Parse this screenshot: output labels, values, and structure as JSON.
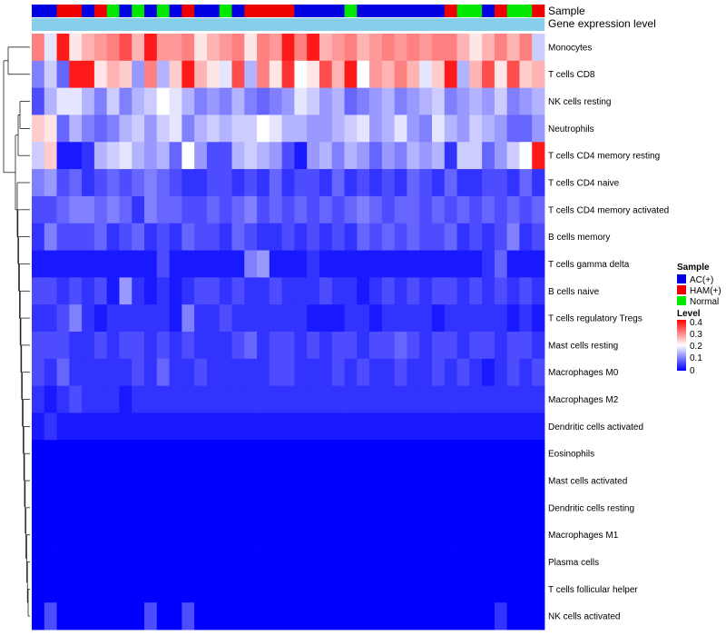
{
  "chart_data": {
    "type": "heatmap",
    "title": "",
    "annotation_rows": [
      "Sample",
      "Gene expression level"
    ],
    "rows": [
      "Monocytes",
      "T cells CD8",
      "NK cells resting",
      "Neutrophils",
      "T cells CD4 memory resting",
      "T cells CD4 naive",
      "T cells CD4 memory activated",
      "B cells memory",
      "T cells gamma delta",
      "B cells naive",
      "T cells regulatory  Tregs",
      "Mast cells resting",
      "Macrophages M0",
      "Macrophages M2",
      "Dendritic cells activated",
      "Eosinophils",
      "Mast cells activated",
      "Dendritic cells resting",
      "Macrophages M1",
      "Plasma cells",
      "T cells follicular helper",
      "NK cells activated"
    ],
    "sample_groups": [
      "AC(+)",
      "AC(+)",
      "HAM(+)",
      "HAM(+)",
      "AC(+)",
      "HAM(+)",
      "Normal",
      "AC(+)",
      "Normal",
      "AC(+)",
      "Normal",
      "AC(+)",
      "HAM(+)",
      "AC(+)",
      "AC(+)",
      "Normal",
      "AC(+)",
      "HAM(+)",
      "HAM(+)",
      "HAM(+)",
      "HAM(+)",
      "AC(+)",
      "AC(+)",
      "AC(+)",
      "AC(+)",
      "Normal",
      "AC(+)",
      "AC(+)",
      "AC(+)",
      "AC(+)",
      "AC(+)",
      "AC(+)",
      "AC(+)",
      "HAM(+)",
      "Normal",
      "Normal",
      "AC(+)",
      "HAM(+)",
      "Normal",
      "Normal",
      "HAM(+)"
    ],
    "legend_sample": {
      "title": "Sample",
      "entries": [
        {
          "name": "AC(+)",
          "color": "#0000E0"
        },
        {
          "name": "HAM(+)",
          "color": "#EE0000"
        },
        {
          "name": "Normal",
          "color": "#00E800"
        }
      ]
    },
    "legend_level": {
      "title": "Level",
      "range": [
        0,
        0.4
      ],
      "ticks": [
        "0.4",
        "0.3",
        "0.2",
        "0.1",
        "0"
      ],
      "colors": [
        "#0000FF",
        "#FFFFFF",
        "#FF0000"
      ]
    },
    "expression_color": "#87CEEB",
    "values": [
      [
        0.3,
        0.18,
        0.38,
        0.22,
        0.26,
        0.28,
        0.3,
        0.34,
        0.26,
        0.38,
        0.28,
        0.28,
        0.3,
        0.22,
        0.26,
        0.28,
        0.3,
        0.22,
        0.3,
        0.28,
        0.38,
        0.3,
        0.38,
        0.26,
        0.28,
        0.3,
        0.26,
        0.28,
        0.3,
        0.28,
        0.3,
        0.28,
        0.3,
        0.3,
        0.26,
        0.22,
        0.26,
        0.3,
        0.26,
        0.3,
        0.16
      ],
      [
        0.1,
        0.16,
        0.08,
        0.38,
        0.38,
        0.22,
        0.26,
        0.24,
        0.12,
        0.3,
        0.14,
        0.24,
        0.38,
        0.26,
        0.22,
        0.18,
        0.34,
        0.14,
        0.3,
        0.22,
        0.36,
        0.2,
        0.22,
        0.34,
        0.26,
        0.38,
        0.2,
        0.28,
        0.26,
        0.3,
        0.26,
        0.18,
        0.24,
        0.38,
        0.14,
        0.26,
        0.34,
        0.22,
        0.34,
        0.24,
        0.26
      ],
      [
        0.06,
        0.14,
        0.18,
        0.18,
        0.14,
        0.1,
        0.16,
        0.1,
        0.14,
        0.16,
        0.2,
        0.18,
        0.14,
        0.1,
        0.12,
        0.1,
        0.14,
        0.1,
        0.08,
        0.1,
        0.12,
        0.18,
        0.16,
        0.12,
        0.14,
        0.08,
        0.1,
        0.12,
        0.14,
        0.1,
        0.12,
        0.14,
        0.16,
        0.1,
        0.12,
        0.14,
        0.12,
        0.16,
        0.1,
        0.12,
        0.14
      ],
      [
        0.24,
        0.22,
        0.08,
        0.14,
        0.1,
        0.08,
        0.1,
        0.14,
        0.16,
        0.12,
        0.16,
        0.18,
        0.1,
        0.14,
        0.16,
        0.14,
        0.16,
        0.16,
        0.2,
        0.18,
        0.14,
        0.14,
        0.12,
        0.12,
        0.14,
        0.16,
        0.18,
        0.12,
        0.14,
        0.18,
        0.12,
        0.1,
        0.18,
        0.14,
        0.12,
        0.16,
        0.14,
        0.12,
        0.08,
        0.08,
        0.12
      ],
      [
        0.16,
        0.24,
        0.02,
        0.02,
        0.04,
        0.14,
        0.16,
        0.18,
        0.14,
        0.12,
        0.14,
        0.08,
        0.2,
        0.12,
        0.06,
        0.06,
        0.14,
        0.16,
        0.14,
        0.12,
        0.06,
        0.02,
        0.12,
        0.14,
        0.1,
        0.14,
        0.12,
        0.08,
        0.12,
        0.1,
        0.14,
        0.12,
        0.14,
        0.04,
        0.16,
        0.16,
        0.08,
        0.12,
        0.16,
        0.2,
        0.38
      ],
      [
        0.1,
        0.12,
        0.06,
        0.08,
        0.04,
        0.06,
        0.08,
        0.06,
        0.08,
        0.1,
        0.08,
        0.06,
        0.04,
        0.04,
        0.06,
        0.06,
        0.04,
        0.06,
        0.04,
        0.08,
        0.04,
        0.06,
        0.06,
        0.04,
        0.08,
        0.04,
        0.06,
        0.04,
        0.06,
        0.04,
        0.08,
        0.06,
        0.04,
        0.08,
        0.04,
        0.04,
        0.06,
        0.06,
        0.04,
        0.08,
        0.04
      ],
      [
        0.06,
        0.06,
        0.08,
        0.1,
        0.1,
        0.08,
        0.1,
        0.08,
        0.04,
        0.1,
        0.08,
        0.08,
        0.06,
        0.06,
        0.08,
        0.06,
        0.08,
        0.1,
        0.06,
        0.08,
        0.06,
        0.08,
        0.06,
        0.08,
        0.06,
        0.08,
        0.1,
        0.08,
        0.06,
        0.08,
        0.08,
        0.06,
        0.08,
        0.06,
        0.08,
        0.06,
        0.08,
        0.06,
        0.08,
        0.06,
        0.08
      ],
      [
        0.04,
        0.1,
        0.06,
        0.06,
        0.06,
        0.08,
        0.04,
        0.06,
        0.08,
        0.04,
        0.06,
        0.04,
        0.08,
        0.06,
        0.06,
        0.04,
        0.08,
        0.06,
        0.04,
        0.04,
        0.06,
        0.04,
        0.06,
        0.04,
        0.06,
        0.04,
        0.08,
        0.06,
        0.08,
        0.06,
        0.08,
        0.06,
        0.06,
        0.08,
        0.04,
        0.06,
        0.04,
        0.06,
        0.1,
        0.04,
        0.06
      ],
      [
        0.02,
        0.02,
        0.02,
        0.02,
        0.02,
        0.02,
        0.02,
        0.02,
        0.02,
        0.02,
        0.06,
        0.02,
        0.02,
        0.02,
        0.02,
        0.02,
        0.02,
        0.1,
        0.12,
        0.02,
        0.02,
        0.02,
        0.04,
        0.02,
        0.02,
        0.02,
        0.02,
        0.02,
        0.02,
        0.02,
        0.02,
        0.02,
        0.02,
        0.02,
        0.02,
        0.02,
        0.04,
        0.08,
        0.02,
        0.02,
        0.02
      ],
      [
        0.06,
        0.06,
        0.04,
        0.06,
        0.04,
        0.06,
        0.02,
        0.12,
        0.04,
        0.02,
        0.04,
        0.02,
        0.04,
        0.06,
        0.06,
        0.04,
        0.06,
        0.04,
        0.04,
        0.06,
        0.04,
        0.04,
        0.04,
        0.06,
        0.04,
        0.04,
        0.02,
        0.04,
        0.06,
        0.04,
        0.06,
        0.04,
        0.06,
        0.06,
        0.04,
        0.06,
        0.04,
        0.06,
        0.04,
        0.06,
        0.04
      ],
      [
        0.04,
        0.04,
        0.06,
        0.1,
        0.04,
        0.02,
        0.04,
        0.04,
        0.04,
        0.04,
        0.04,
        0.02,
        0.1,
        0.04,
        0.04,
        0.06,
        0.04,
        0.04,
        0.04,
        0.04,
        0.04,
        0.04,
        0.02,
        0.02,
        0.02,
        0.04,
        0.04,
        0.02,
        0.04,
        0.04,
        0.04,
        0.04,
        0.02,
        0.04,
        0.04,
        0.04,
        0.04,
        0.04,
        0.02,
        0.04,
        0.02
      ],
      [
        0.06,
        0.06,
        0.06,
        0.04,
        0.04,
        0.06,
        0.04,
        0.06,
        0.06,
        0.04,
        0.06,
        0.04,
        0.06,
        0.04,
        0.04,
        0.04,
        0.06,
        0.08,
        0.04,
        0.06,
        0.06,
        0.04,
        0.06,
        0.04,
        0.06,
        0.06,
        0.04,
        0.06,
        0.06,
        0.08,
        0.06,
        0.04,
        0.06,
        0.06,
        0.04,
        0.06,
        0.06,
        0.04,
        0.06,
        0.06,
        0.04
      ],
      [
        0.06,
        0.04,
        0.08,
        0.04,
        0.04,
        0.04,
        0.04,
        0.04,
        0.06,
        0.04,
        0.08,
        0.04,
        0.04,
        0.06,
        0.04,
        0.04,
        0.04,
        0.04,
        0.04,
        0.06,
        0.06,
        0.04,
        0.04,
        0.04,
        0.06,
        0.04,
        0.06,
        0.04,
        0.04,
        0.06,
        0.04,
        0.04,
        0.06,
        0.04,
        0.06,
        0.04,
        0.02,
        0.04,
        0.06,
        0.04,
        0.06
      ],
      [
        0.04,
        0.02,
        0.04,
        0.06,
        0.04,
        0.04,
        0.04,
        0.02,
        0.04,
        0.04,
        0.04,
        0.04,
        0.04,
        0.04,
        0.04,
        0.04,
        0.04,
        0.04,
        0.04,
        0.04,
        0.04,
        0.04,
        0.04,
        0.04,
        0.04,
        0.04,
        0.04,
        0.04,
        0.04,
        0.04,
        0.04,
        0.04,
        0.04,
        0.04,
        0.04,
        0.04,
        0.04,
        0.04,
        0.04,
        0.04,
        0.04
      ],
      [
        0.02,
        0.04,
        0.02,
        0.02,
        0.02,
        0.02,
        0.02,
        0.02,
        0.02,
        0.02,
        0.02,
        0.02,
        0.02,
        0.02,
        0.02,
        0.02,
        0.02,
        0.02,
        0.02,
        0.02,
        0.02,
        0.02,
        0.02,
        0.02,
        0.02,
        0.02,
        0.02,
        0.02,
        0.02,
        0.02,
        0.02,
        0.02,
        0.02,
        0.02,
        0.02,
        0.02,
        0.02,
        0.02,
        0.02,
        0.02,
        0.02
      ],
      [
        0,
        0,
        0,
        0,
        0,
        0,
        0,
        0,
        0,
        0,
        0,
        0,
        0,
        0,
        0,
        0,
        0,
        0,
        0,
        0,
        0,
        0,
        0,
        0,
        0,
        0,
        0,
        0,
        0,
        0,
        0,
        0,
        0,
        0,
        0,
        0,
        0,
        0,
        0,
        0,
        0
      ],
      [
        0,
        0,
        0,
        0,
        0,
        0,
        0,
        0,
        0,
        0,
        0,
        0,
        0,
        0,
        0,
        0,
        0,
        0,
        0,
        0,
        0,
        0,
        0,
        0,
        0,
        0,
        0,
        0,
        0,
        0,
        0,
        0,
        0,
        0,
        0,
        0,
        0,
        0,
        0,
        0,
        0
      ],
      [
        0,
        0,
        0,
        0,
        0,
        0,
        0,
        0,
        0,
        0,
        0,
        0,
        0,
        0,
        0,
        0,
        0,
        0,
        0,
        0,
        0,
        0,
        0,
        0,
        0,
        0,
        0,
        0,
        0,
        0,
        0,
        0,
        0,
        0,
        0,
        0,
        0,
        0,
        0,
        0,
        0
      ],
      [
        0,
        0,
        0,
        0,
        0,
        0,
        0,
        0,
        0,
        0,
        0,
        0,
        0,
        0,
        0,
        0,
        0,
        0,
        0,
        0,
        0,
        0,
        0,
        0,
        0,
        0,
        0,
        0,
        0,
        0,
        0,
        0,
        0,
        0,
        0,
        0,
        0,
        0,
        0,
        0,
        0
      ],
      [
        0,
        0,
        0,
        0,
        0,
        0,
        0,
        0,
        0,
        0,
        0,
        0,
        0,
        0,
        0,
        0,
        0,
        0,
        0,
        0,
        0,
        0,
        0,
        0,
        0,
        0,
        0,
        0,
        0,
        0,
        0,
        0,
        0,
        0,
        0,
        0,
        0,
        0,
        0,
        0,
        0
      ],
      [
        0,
        0,
        0,
        0,
        0,
        0,
        0,
        0,
        0,
        0,
        0,
        0,
        0,
        0,
        0,
        0,
        0,
        0,
        0,
        0,
        0,
        0,
        0,
        0,
        0,
        0,
        0,
        0,
        0,
        0,
        0,
        0,
        0,
        0,
        0,
        0,
        0,
        0,
        0,
        0,
        0
      ],
      [
        0,
        0.06,
        0,
        0,
        0,
        0,
        0,
        0,
        0,
        0.06,
        0,
        0,
        0.06,
        0,
        0,
        0,
        0,
        0,
        0,
        0,
        0,
        0,
        0,
        0,
        0,
        0,
        0,
        0,
        0,
        0,
        0,
        0,
        0,
        0,
        0,
        0,
        0,
        0.04,
        0,
        0,
        0
      ]
    ]
  }
}
